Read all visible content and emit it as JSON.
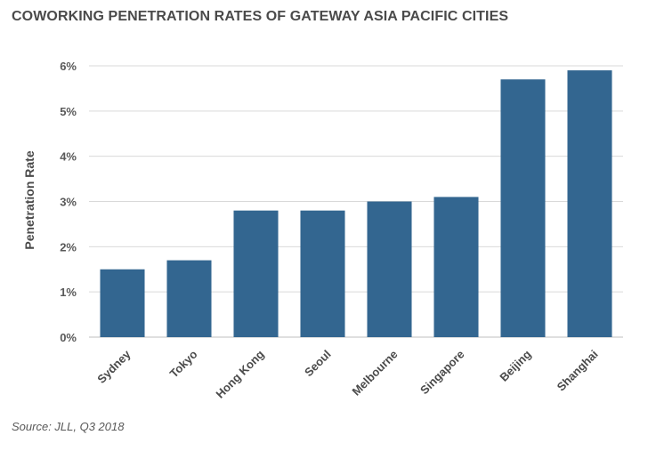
{
  "chart_data": {
    "type": "bar",
    "title": "COWORKING PENETRATION RATES OF GATEWAY ASIA PACIFIC CITIES",
    "ylabel": "Penetration Rate",
    "xlabel": "",
    "categories": [
      "Sydney",
      "Tokyo",
      "Hong Kong",
      "Seoul",
      "Melbourne",
      "Singapore",
      "Beijing",
      "Shanghai"
    ],
    "values": [
      1.5,
      1.7,
      2.8,
      2.8,
      3.0,
      3.1,
      5.7,
      5.9
    ],
    "ylim": [
      0,
      6
    ],
    "yticks": [
      0,
      1,
      2,
      3,
      4,
      5,
      6
    ],
    "ytick_labels": [
      "0%",
      "1%",
      "2%",
      "3%",
      "4%",
      "5%",
      "6%"
    ],
    "grid": true,
    "bar_color": "#336690",
    "source": "Source: JLL, Q3 2018"
  }
}
